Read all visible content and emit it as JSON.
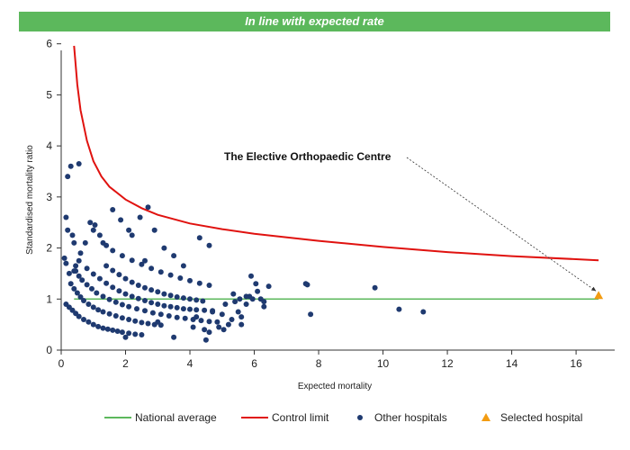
{
  "banner": {
    "text": "In line with expected rate",
    "color": "#5cb85c"
  },
  "chart_data": {
    "type": "scatter",
    "title": "In line with expected rate",
    "xlabel": "Expected mortality",
    "ylabel": "Standardised mortality ratio",
    "xlim": [
      0,
      17.2
    ],
    "ylim": [
      0,
      6.1
    ],
    "xticks": [
      0,
      2,
      4,
      6,
      8,
      10,
      12,
      14,
      16
    ],
    "yticks": [
      0,
      1,
      2,
      3,
      4,
      5,
      6
    ],
    "grid": false,
    "legend_position": "bottom",
    "colors": {
      "national": "#5cb85c",
      "control": "#e0120f",
      "other": "#1f3a70",
      "selected": "#f39c12"
    },
    "annotation": {
      "text": "The Elective Orthopaedic Centre",
      "target": [
        16.7,
        1.07
      ]
    },
    "series": [
      {
        "name": "National average",
        "type": "line",
        "x": [
          0.4,
          16.7
        ],
        "y": [
          1,
          1
        ]
      },
      {
        "name": "Control limit",
        "type": "line",
        "x": [
          0.4,
          0.5,
          0.6,
          0.8,
          1.0,
          1.25,
          1.5,
          2,
          2.5,
          3,
          4,
          5,
          6,
          8,
          10,
          12,
          14,
          16.7
        ],
        "y": [
          5.96,
          5.2,
          4.7,
          4.1,
          3.7,
          3.4,
          3.2,
          2.95,
          2.78,
          2.65,
          2.48,
          2.37,
          2.28,
          2.14,
          2.02,
          1.92,
          1.84,
          1.76
        ]
      },
      {
        "name": "Other hospitals",
        "type": "scatter",
        "x": [
          0.15,
          0.25,
          0.35,
          0.45,
          0.55,
          0.7,
          0.85,
          1.0,
          1.15,
          1.3,
          1.45,
          1.6,
          1.75,
          1.9,
          2.1,
          2.3,
          2.5,
          0.3,
          0.4,
          0.5,
          0.6,
          0.7,
          0.85,
          1.0,
          1.15,
          1.3,
          1.5,
          1.7,
          1.9,
          2.1,
          2.3,
          2.5,
          2.7,
          2.9,
          3.1,
          0.45,
          0.55,
          0.65,
          0.8,
          0.95,
          1.1,
          1.3,
          1.5,
          1.7,
          1.9,
          2.1,
          2.35,
          2.6,
          2.85,
          3.1,
          3.35,
          3.6,
          3.85,
          4.1,
          4.35,
          4.6,
          0.8,
          1.0,
          1.2,
          1.4,
          1.6,
          1.8,
          2.0,
          2.2,
          2.4,
          2.6,
          2.8,
          3.0,
          3.2,
          3.4,
          3.6,
          3.8,
          4.0,
          4.2,
          4.45,
          4.7,
          1.4,
          1.6,
          1.8,
          2.0,
          2.2,
          2.4,
          2.6,
          2.8,
          3.0,
          3.2,
          3.4,
          3.6,
          3.8,
          4.0,
          4.2,
          4.4,
          1.6,
          1.9,
          2.2,
          2.5,
          2.8,
          3.1,
          3.4,
          3.7,
          4.0,
          4.3,
          4.6,
          0.2,
          0.3,
          0.55,
          0.15,
          0.2,
          0.35,
          0.4,
          0.6,
          0.75,
          0.9,
          1.05,
          1.3,
          1.6,
          1.85,
          2.1,
          2.45,
          2.7,
          1.0,
          1.2,
          1.4,
          2.2,
          2.6,
          2.9,
          3.2,
          3.5,
          3.8,
          4.3,
          4.6,
          0.1,
          0.15,
          0.25,
          0.4,
          0.45,
          0.55,
          2.0,
          3.0,
          3.5,
          4.1,
          4.5,
          4.7,
          5.1,
          5.3,
          5.4,
          5.55,
          5.6,
          5.75,
          5.85,
          5.9,
          6.05,
          6.1,
          6.2,
          6.3,
          6.45,
          4.9,
          5.05,
          5.2,
          5.35,
          5.5,
          5.6,
          5.75,
          5.95,
          6.3,
          4.2,
          4.45,
          4.6,
          4.85,
          5.0,
          7.6,
          7.65,
          7.75,
          9.75,
          10.5,
          11.25
        ],
        "y": [
          0.9,
          0.84,
          0.78,
          0.72,
          0.66,
          0.6,
          0.55,
          0.5,
          0.46,
          0.43,
          0.41,
          0.39,
          0.37,
          0.35,
          0.33,
          0.31,
          0.3,
          1.3,
          1.2,
          1.12,
          1.04,
          0.97,
          0.9,
          0.84,
          0.79,
          0.75,
          0.71,
          0.67,
          0.63,
          0.6,
          0.57,
          0.54,
          0.52,
          0.5,
          0.49,
          1.55,
          1.45,
          1.37,
          1.28,
          1.2,
          1.12,
          1.05,
          0.99,
          0.94,
          0.89,
          0.85,
          0.81,
          0.77,
          0.73,
          0.7,
          0.67,
          0.64,
          0.62,
          0.6,
          0.58,
          0.56,
          1.6,
          1.49,
          1.4,
          1.31,
          1.23,
          1.16,
          1.1,
          1.05,
          1.01,
          0.97,
          0.93,
          0.9,
          0.87,
          0.85,
          0.83,
          0.81,
          0.8,
          0.79,
          0.78,
          0.77,
          1.65,
          1.56,
          1.48,
          1.4,
          1.33,
          1.27,
          1.22,
          1.18,
          1.14,
          1.1,
          1.07,
          1.04,
          1.02,
          1.0,
          0.98,
          0.96,
          1.95,
          1.85,
          1.76,
          1.68,
          1.6,
          1.53,
          1.47,
          1.41,
          1.36,
          1.31,
          1.27,
          3.4,
          3.6,
          3.65,
          2.6,
          2.35,
          2.25,
          2.1,
          1.9,
          2.1,
          2.5,
          2.45,
          2.1,
          2.75,
          2.55,
          2.35,
          2.6,
          2.8,
          2.35,
          2.25,
          2.05,
          2.25,
          1.75,
          2.35,
          2.0,
          1.85,
          1.65,
          2.2,
          2.05,
          1.8,
          1.7,
          1.5,
          1.55,
          1.65,
          1.75,
          0.25,
          0.55,
          0.25,
          0.45,
          0.2,
          0.75,
          0.9,
          0.6,
          0.95,
          1.0,
          0.5,
          0.9,
          1.05,
          1.45,
          1.3,
          1.15,
          1.0,
          0.85,
          1.25,
          0.45,
          0.4,
          0.5,
          1.1,
          0.75,
          0.65,
          1.05,
          1.0,
          0.95,
          0.65,
          0.4,
          0.35,
          0.55,
          0.7,
          1.3,
          1.28,
          0.7,
          1.22,
          0.8,
          0.75
        ]
      },
      {
        "name": "Selected hospital",
        "type": "scatter",
        "x": [
          16.7
        ],
        "y": [
          1.07
        ]
      }
    ]
  }
}
